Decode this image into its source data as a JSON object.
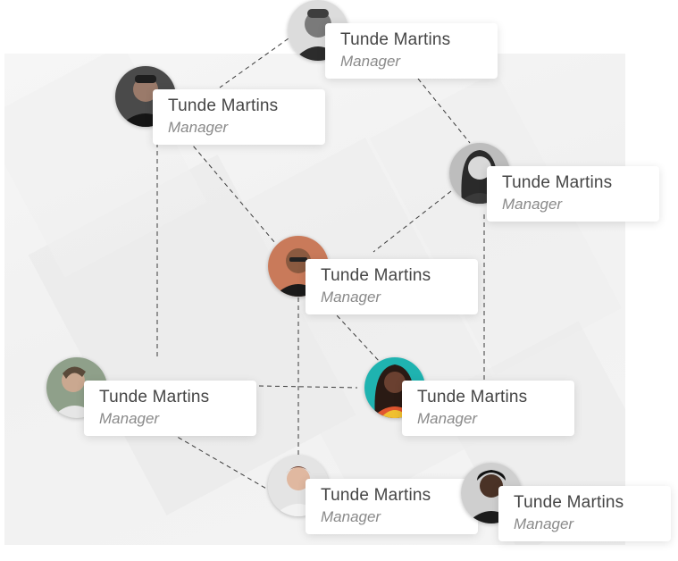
{
  "people": [
    {
      "name": "Tunde Martins",
      "role": "Manager"
    },
    {
      "name": "Tunde Martins",
      "role": "Manager"
    },
    {
      "name": "Tunde Martins",
      "role": "Manager"
    },
    {
      "name": "Tunde Martins",
      "role": "Manager"
    },
    {
      "name": "Tunde Martins",
      "role": "Manager"
    },
    {
      "name": "Tunde Martins",
      "role": "Manager"
    },
    {
      "name": "Tunde Martins",
      "role": "Manager"
    },
    {
      "name": "Tunde Martins",
      "role": "Manager"
    }
  ],
  "colors": {
    "card_background": "#ffffff",
    "name_text": "#454545",
    "role_text": "#8a8a8a",
    "connector": "#3a3a3a"
  },
  "icons": [
    "person-avatar-icon"
  ]
}
